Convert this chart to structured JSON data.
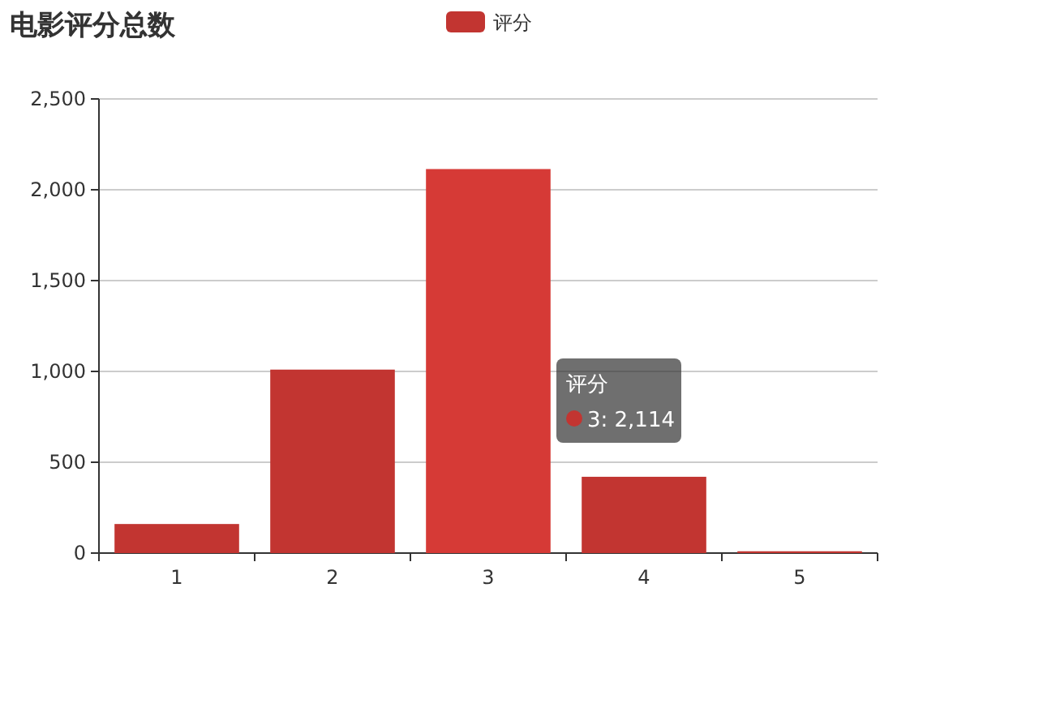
{
  "chart_data": {
    "type": "bar",
    "title": "电影评分总数",
    "categories": [
      "1",
      "2",
      "3",
      "4",
      "5"
    ],
    "series": [
      {
        "name": "评分",
        "color": "#c23531",
        "colors": [
          "#c23531",
          "#c23531",
          "#d63a36",
          "#c23531",
          "#c23531"
        ],
        "values": [
          160,
          1010,
          2114,
          420,
          10
        ]
      }
    ],
    "ylim": [
      0,
      2500
    ],
    "yticks": [
      {
        "value": 0,
        "label": "0"
      },
      {
        "value": 500,
        "label": "500"
      },
      {
        "value": 1000,
        "label": "1,000"
      },
      {
        "value": 1500,
        "label": "1,500"
      },
      {
        "value": 2000,
        "label": "2,000"
      },
      {
        "value": 2500,
        "label": "2,500"
      }
    ],
    "grid": "y",
    "legend": "top",
    "annotations": [
      "3: 2,114"
    ]
  }
}
